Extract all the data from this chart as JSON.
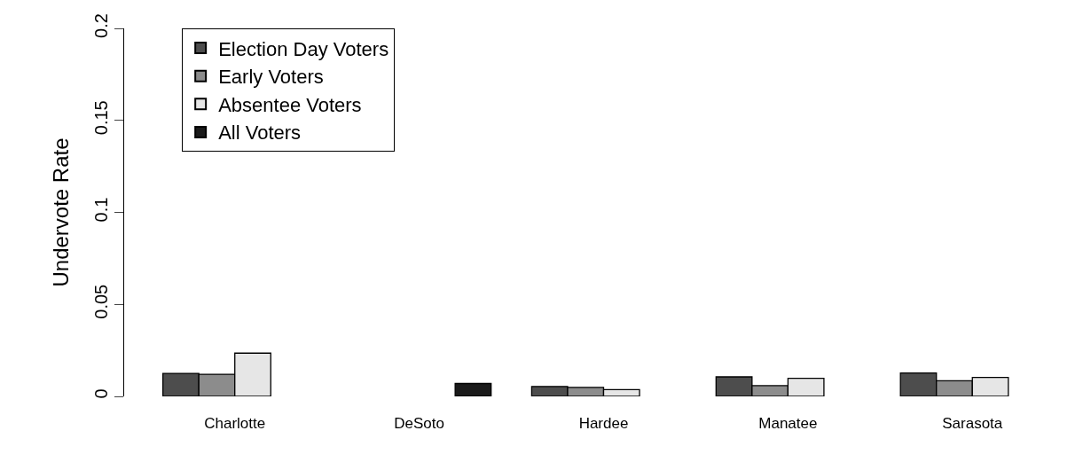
{
  "chart_data": {
    "type": "bar",
    "ylabel": "Undervote Rate",
    "categories": [
      "Charlotte",
      "DeSoto",
      "Hardee",
      "Manatee",
      "Sarasota"
    ],
    "series": [
      {
        "name": "Election Day Voters",
        "color": "#4d4d4d",
        "values": [
          0.0125,
          null,
          0.0054,
          0.0106,
          0.0127
        ]
      },
      {
        "name": "Early Voters",
        "color": "#8c8c8c",
        "values": [
          0.012,
          null,
          0.0049,
          0.0058,
          0.0085
        ]
      },
      {
        "name": "Absentee Voters",
        "color": "#e6e6e6",
        "values": [
          0.0235,
          null,
          0.0037,
          0.0098,
          0.0103
        ]
      },
      {
        "name": "All Voters",
        "color": "#1a1a1a",
        "values": [
          null,
          0.007,
          null,
          null,
          null
        ]
      }
    ],
    "ylim": [
      0,
      0.2
    ],
    "yticks": [
      0,
      0.05,
      0.1,
      0.15,
      0.2
    ],
    "legend": "top left"
  }
}
